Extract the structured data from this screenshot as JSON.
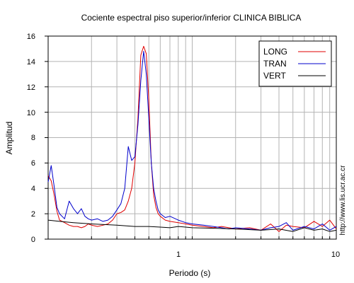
{
  "chart_data": {
    "type": "line",
    "title": "Cociente espectral piso superior/inferior  CLINICA BIBLICA",
    "xlabel": "Periodo (s)",
    "ylabel": "Amplitud",
    "xscale": "log",
    "xlim": [
      0.1,
      10
    ],
    "ylim": [
      0,
      16
    ],
    "yticks": [
      0,
      2,
      4,
      6,
      8,
      10,
      12,
      14,
      16
    ],
    "xtick_labels": [
      "1",
      "10"
    ],
    "ytick_labels": [
      "0",
      "2",
      "4",
      "6",
      "8",
      "10",
      "12",
      "14",
      "16"
    ],
    "grid": true,
    "legend_position": "top-right",
    "credit": "http://www.lis.ucr.ac.cr",
    "series": [
      {
        "name": "LONG",
        "color": "#e00000",
        "x": [
          0.1,
          0.105,
          0.11,
          0.115,
          0.12,
          0.13,
          0.14,
          0.15,
          0.16,
          0.17,
          0.18,
          0.19,
          0.2,
          0.22,
          0.24,
          0.26,
          0.28,
          0.3,
          0.32,
          0.34,
          0.36,
          0.38,
          0.4,
          0.42,
          0.44,
          0.46,
          0.48,
          0.5,
          0.52,
          0.54,
          0.56,
          0.58,
          0.6,
          0.65,
          0.7,
          0.8,
          0.9,
          1.0,
          1.2,
          1.4,
          1.6,
          1.8,
          2.0,
          2.5,
          3.0,
          3.5,
          4.0,
          4.5,
          5.0,
          6.0,
          7.0,
          8.0,
          9.0,
          10.0
        ],
        "y": [
          5.0,
          4.6,
          3.5,
          2.2,
          1.5,
          1.3,
          1.1,
          1.0,
          1.0,
          0.9,
          1.0,
          1.2,
          1.1,
          1.0,
          1.1,
          1.2,
          1.5,
          2.0,
          2.1,
          2.3,
          3.0,
          4.0,
          6.0,
          9.5,
          14.5,
          15.2,
          14.6,
          11.0,
          6.0,
          3.5,
          2.5,
          2.0,
          1.8,
          1.5,
          1.4,
          1.3,
          1.2,
          1.1,
          1.0,
          0.9,
          1.0,
          0.9,
          0.8,
          0.9,
          0.7,
          1.2,
          0.6,
          1.1,
          1.0,
          0.9,
          1.4,
          1.0,
          1.5,
          0.8
        ]
      },
      {
        "name": "TRAN",
        "color": "#0000cc",
        "x": [
          0.1,
          0.105,
          0.11,
          0.115,
          0.12,
          0.13,
          0.14,
          0.15,
          0.16,
          0.17,
          0.18,
          0.19,
          0.2,
          0.22,
          0.24,
          0.26,
          0.28,
          0.3,
          0.32,
          0.34,
          0.36,
          0.38,
          0.4,
          0.42,
          0.44,
          0.46,
          0.48,
          0.5,
          0.52,
          0.54,
          0.56,
          0.58,
          0.6,
          0.65,
          0.7,
          0.8,
          0.9,
          1.0,
          1.2,
          1.4,
          1.6,
          1.8,
          2.0,
          2.5,
          3.0,
          3.5,
          4.0,
          4.5,
          5.0,
          6.0,
          7.0,
          8.0,
          9.0,
          10.0
        ],
        "y": [
          4.5,
          5.8,
          4.2,
          2.5,
          2.0,
          1.6,
          3.0,
          2.4,
          2.0,
          2.4,
          1.8,
          1.6,
          1.5,
          1.6,
          1.4,
          1.5,
          1.8,
          2.3,
          2.8,
          4.0,
          7.3,
          6.2,
          6.5,
          9.0,
          12.5,
          14.8,
          13.0,
          9.5,
          6.0,
          4.0,
          3.0,
          2.3,
          2.0,
          1.7,
          1.8,
          1.5,
          1.3,
          1.2,
          1.1,
          1.0,
          0.9,
          0.8,
          0.9,
          0.8,
          0.7,
          0.9,
          1.0,
          1.3,
          0.7,
          1.0,
          0.8,
          1.2,
          0.7,
          1.0
        ]
      },
      {
        "name": "VERT",
        "color": "#000000",
        "x": [
          0.1,
          0.12,
          0.15,
          0.2,
          0.3,
          0.4,
          0.5,
          0.6,
          0.7,
          0.8,
          1.0,
          1.5,
          2.0,
          3.0,
          4.0,
          5.0,
          6.0,
          7.0,
          8.0,
          9.0,
          10.0
        ],
        "y": [
          1.5,
          1.4,
          1.3,
          1.2,
          1.1,
          1.0,
          1.0,
          0.95,
          0.9,
          1.0,
          0.9,
          0.85,
          0.8,
          0.7,
          0.8,
          0.6,
          0.9,
          0.7,
          0.8,
          0.6,
          0.7
        ]
      }
    ]
  }
}
